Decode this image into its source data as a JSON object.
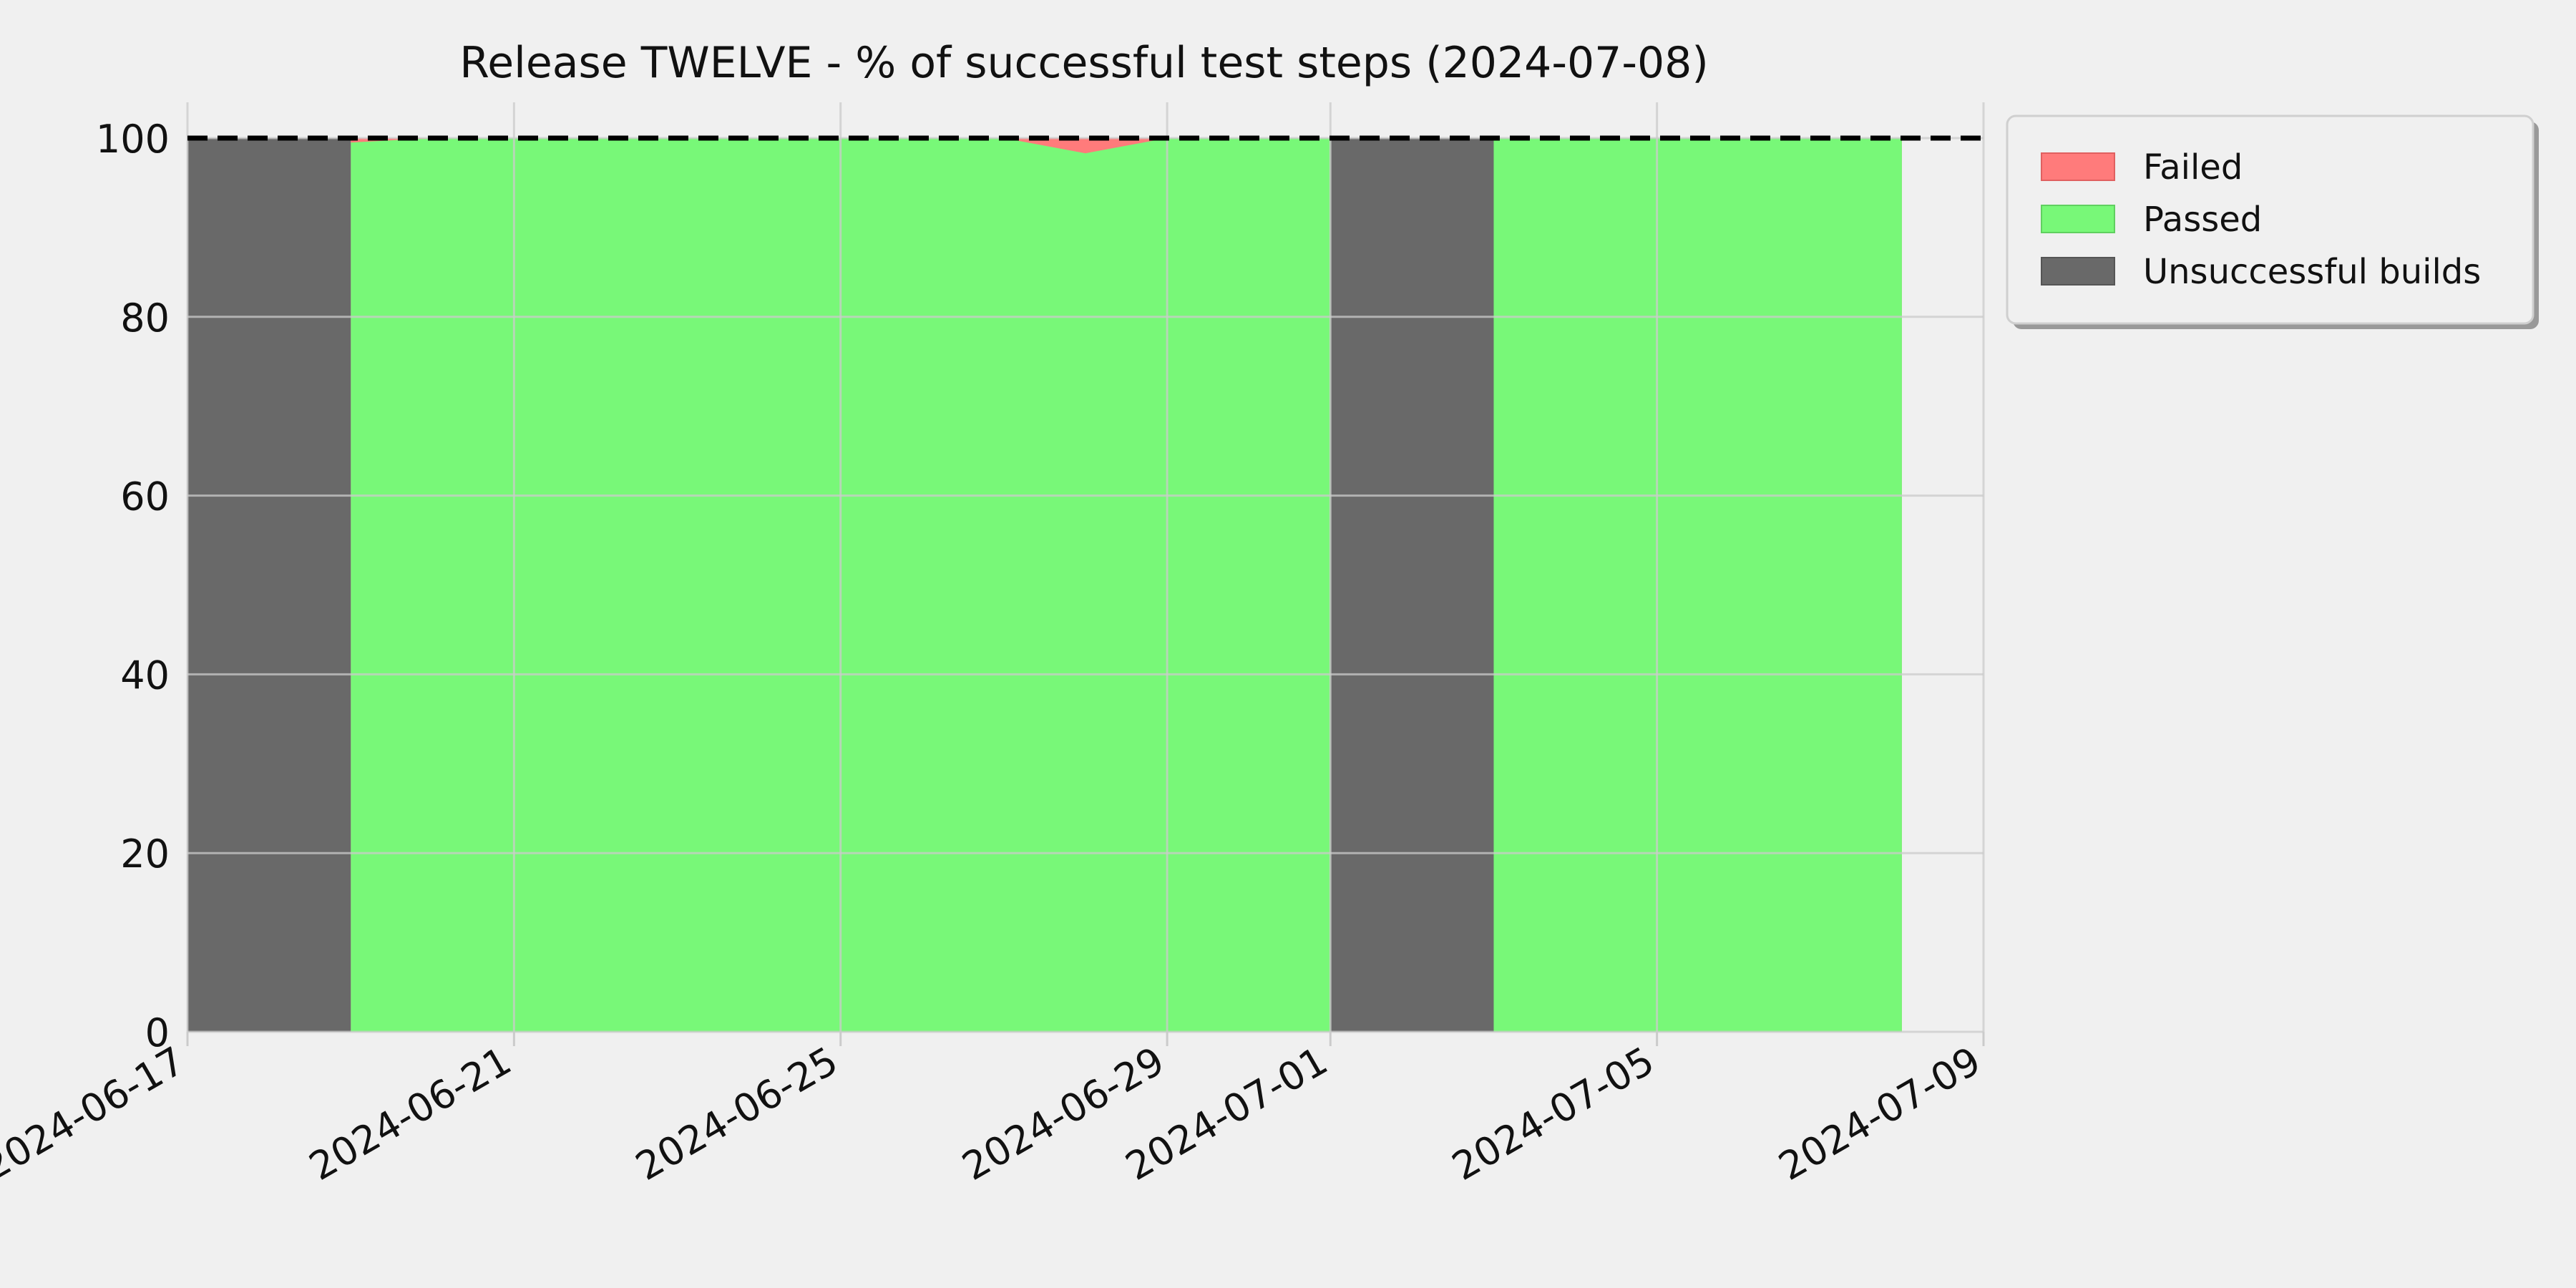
{
  "chart_data": {
    "type": "area",
    "title": "Release TWELVE - % of successful test steps (2024-07-08)",
    "xlabel": "",
    "ylabel": "",
    "xlim": [
      "2024-06-17",
      "2024-07-09"
    ],
    "ylim": [
      0,
      104
    ],
    "x_ticks": [
      "2024-06-17",
      "2024-06-21",
      "2024-06-25",
      "2024-06-29",
      "2024-07-01",
      "2024-07-05",
      "2024-07-09"
    ],
    "y_ticks": [
      0,
      20,
      40,
      60,
      80,
      100
    ],
    "grid": true,
    "legend_position": "top-right",
    "reference_line": {
      "y": 100,
      "style": "dashed",
      "color": "#000000"
    },
    "series": [
      {
        "name": "Failed",
        "color": "#ff7b7b",
        "points": [
          {
            "x": "2024-06-19",
            "y": 100
          },
          {
            "x": "2024-06-20",
            "y": 100
          },
          {
            "x": "2024-06-27",
            "y": 100
          },
          {
            "x": "2024-06-28",
            "y": 100
          },
          {
            "x": "2024-06-29",
            "y": 100
          },
          {
            "x": "2024-07-03",
            "y": 100
          },
          {
            "x": "2024-07-08",
            "y": 100
          }
        ]
      },
      {
        "name": "Passed",
        "color": "#78f878",
        "points": [
          {
            "x": "2024-06-19",
            "y": 99.5
          },
          {
            "x": "2024-06-20",
            "y": 100
          },
          {
            "x": "2024-06-27",
            "y": 100
          },
          {
            "x": "2024-06-28",
            "y": 98.3
          },
          {
            "x": "2024-06-29",
            "y": 100
          },
          {
            "x": "2024-07-01",
            "y": 100
          },
          {
            "x": "2024-07-03",
            "y": 100
          },
          {
            "x": "2024-07-08",
            "y": 100
          }
        ]
      },
      {
        "name": "Unsuccessful builds",
        "color": "#696969",
        "spans": [
          {
            "start": "2024-06-17",
            "end": "2024-06-19",
            "value": 100
          },
          {
            "start": "2024-07-01",
            "end": "2024-07-03",
            "value": 100
          }
        ]
      }
    ]
  }
}
